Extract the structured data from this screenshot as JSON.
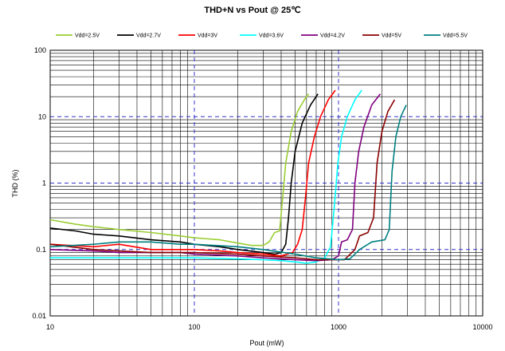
{
  "chart_data": {
    "type": "line",
    "title": "THD+N vs Pout   @  25℃",
    "xlabel": "Pout (mW)",
    "ylabel": "THD (%)",
    "x_scale": "log",
    "y_scale": "log",
    "xlim": [
      10,
      10000
    ],
    "ylim": [
      0.01,
      100
    ],
    "x_ticks": [
      "10",
      "100",
      "1000",
      "10000"
    ],
    "y_ticks": [
      "0.01",
      "0.1",
      "1",
      "10",
      "100"
    ],
    "grid": true,
    "legend_position": "top",
    "series": [
      {
        "name": "Vdd=2.5V",
        "color": "#9acd32",
        "points": [
          [
            10,
            0.28
          ],
          [
            15,
            0.24
          ],
          [
            20,
            0.22
          ],
          [
            30,
            0.2
          ],
          [
            50,
            0.18
          ],
          [
            80,
            0.16
          ],
          [
            100,
            0.15
          ],
          [
            150,
            0.14
          ],
          [
            200,
            0.125
          ],
          [
            250,
            0.115
          ],
          [
            300,
            0.115
          ],
          [
            330,
            0.13
          ],
          [
            360,
            0.18
          ],
          [
            390,
            0.19
          ],
          [
            410,
            0.6
          ],
          [
            430,
            2
          ],
          [
            470,
            6
          ],
          [
            520,
            12
          ],
          [
            580,
            18
          ],
          [
            620,
            22
          ]
        ]
      },
      {
        "name": "Vdd=2.7V",
        "color": "#000000",
        "points": [
          [
            10,
            0.21
          ],
          [
            15,
            0.19
          ],
          [
            20,
            0.17
          ],
          [
            30,
            0.16
          ],
          [
            50,
            0.14
          ],
          [
            80,
            0.13
          ],
          [
            100,
            0.12
          ],
          [
            150,
            0.11
          ],
          [
            200,
            0.1
          ],
          [
            300,
            0.09
          ],
          [
            360,
            0.085
          ],
          [
            400,
            0.09
          ],
          [
            430,
            0.12
          ],
          [
            450,
            0.3
          ],
          [
            470,
            1
          ],
          [
            500,
            3
          ],
          [
            560,
            8
          ],
          [
            640,
            15
          ],
          [
            720,
            22
          ]
        ]
      },
      {
        "name": "Vdd=3V",
        "color": "#ff0000",
        "points": [
          [
            10,
            0.12
          ],
          [
            20,
            0.11
          ],
          [
            30,
            0.12
          ],
          [
            50,
            0.1
          ],
          [
            80,
            0.1
          ],
          [
            100,
            0.1
          ],
          [
            150,
            0.095
          ],
          [
            200,
            0.09
          ],
          [
            300,
            0.085
          ],
          [
            400,
            0.08
          ],
          [
            480,
            0.09
          ],
          [
            520,
            0.12
          ],
          [
            560,
            0.2
          ],
          [
            590,
            0.6
          ],
          [
            620,
            2
          ],
          [
            680,
            5
          ],
          [
            750,
            10
          ],
          [
            850,
            18
          ],
          [
            950,
            25
          ]
        ]
      },
      {
        "name": "Vdd=3.6V",
        "color": "#00ffff",
        "points": [
          [
            10,
            0.075
          ],
          [
            20,
            0.075
          ],
          [
            30,
            0.075
          ],
          [
            50,
            0.075
          ],
          [
            80,
            0.075
          ],
          [
            100,
            0.075
          ],
          [
            200,
            0.072
          ],
          [
            300,
            0.07
          ],
          [
            400,
            0.068
          ],
          [
            500,
            0.065
          ],
          [
            600,
            0.062
          ],
          [
            700,
            0.065
          ],
          [
            800,
            0.075
          ],
          [
            880,
            0.11
          ],
          [
            940,
            0.5
          ],
          [
            990,
            2
          ],
          [
            1050,
            5
          ],
          [
            1150,
            10
          ],
          [
            1300,
            18
          ],
          [
            1450,
            25
          ]
        ]
      },
      {
        "name": "Vdd=4.2V",
        "color": "#800080",
        "points": [
          [
            10,
            0.1
          ],
          [
            20,
            0.095
          ],
          [
            30,
            0.09
          ],
          [
            50,
            0.09
          ],
          [
            80,
            0.09
          ],
          [
            100,
            0.085
          ],
          [
            200,
            0.08
          ],
          [
            300,
            0.075
          ],
          [
            500,
            0.07
          ],
          [
            700,
            0.068
          ],
          [
            900,
            0.07
          ],
          [
            1000,
            0.08
          ],
          [
            1050,
            0.13
          ],
          [
            1150,
            0.14
          ],
          [
            1250,
            0.2
          ],
          [
            1300,
            1
          ],
          [
            1380,
            3
          ],
          [
            1500,
            7
          ],
          [
            1700,
            15
          ],
          [
            1950,
            22
          ]
        ]
      },
      {
        "name": "Vdd=5V",
        "color": "#8b0000",
        "points": [
          [
            10,
            0.12
          ],
          [
            20,
            0.1
          ],
          [
            30,
            0.095
          ],
          [
            50,
            0.09
          ],
          [
            80,
            0.09
          ],
          [
            100,
            0.09
          ],
          [
            200,
            0.085
          ],
          [
            300,
            0.08
          ],
          [
            500,
            0.075
          ],
          [
            700,
            0.07
          ],
          [
            900,
            0.07
          ],
          [
            1100,
            0.07
          ],
          [
            1300,
            0.1
          ],
          [
            1400,
            0.16
          ],
          [
            1600,
            0.18
          ],
          [
            1750,
            0.3
          ],
          [
            1850,
            2
          ],
          [
            2000,
            6
          ],
          [
            2200,
            12
          ],
          [
            2450,
            18
          ]
        ]
      },
      {
        "name": "Vdd=5.5V",
        "color": "#008080",
        "points": [
          [
            10,
            0.11
          ],
          [
            20,
            0.12
          ],
          [
            30,
            0.13
          ],
          [
            50,
            0.13
          ],
          [
            80,
            0.12
          ],
          [
            100,
            0.12
          ],
          [
            200,
            0.11
          ],
          [
            300,
            0.1
          ],
          [
            500,
            0.085
          ],
          [
            700,
            0.075
          ],
          [
            1000,
            0.07
          ],
          [
            1200,
            0.072
          ],
          [
            1400,
            0.1
          ],
          [
            1700,
            0.13
          ],
          [
            2100,
            0.14
          ],
          [
            2250,
            0.2
          ],
          [
            2350,
            1.5
          ],
          [
            2500,
            5
          ],
          [
            2700,
            10
          ],
          [
            2950,
            15
          ]
        ]
      }
    ]
  }
}
